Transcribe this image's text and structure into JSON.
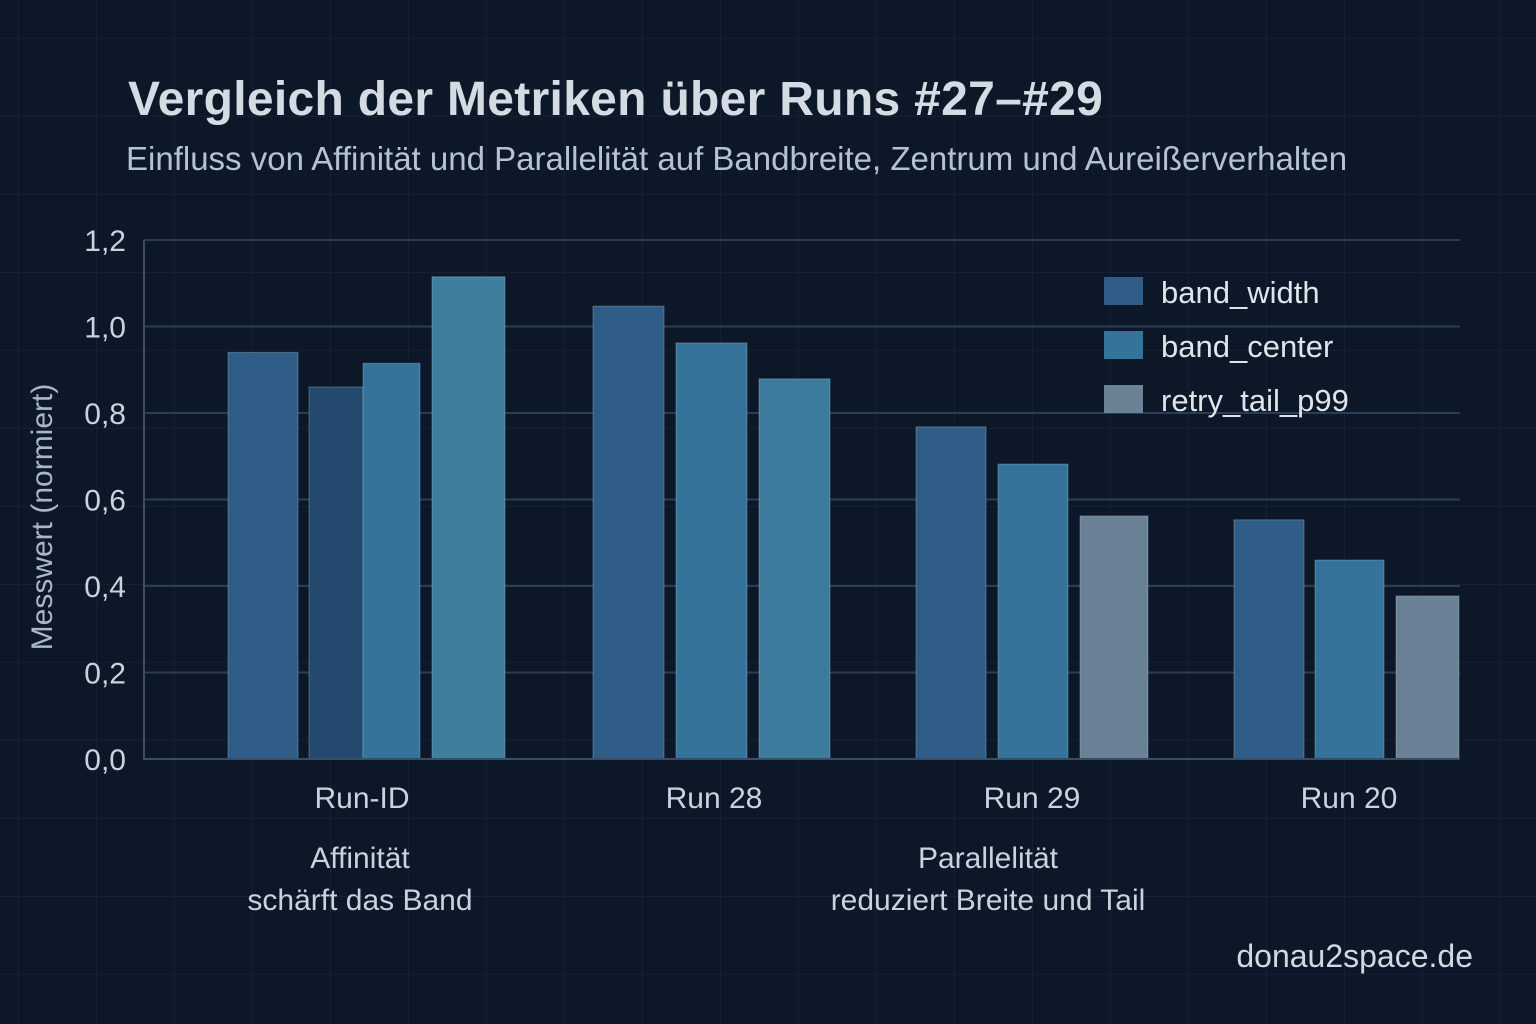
{
  "header": {
    "title": "Vergleich der Metriken über Runs #27–#29",
    "subtitle": "Einfluss von Affinität und Parallelität auf Bandbreite, Zentrum und Aureißerverhalten"
  },
  "watermark": "donau2space.de",
  "chart_data": {
    "type": "bar",
    "title": "Vergleich der Metriken über Runs #27–#29",
    "subtitle": "Einfluss von Affinität und Parallelität auf Bandbreite, Zentrum und Aureißerverhalten",
    "xlabel": "",
    "ylabel": "Messwert (normiert)",
    "ylim": [
      0,
      1.2
    ],
    "yticks": [
      0.0,
      0.2,
      0.4,
      0.6,
      0.8,
      1.0,
      1.2
    ],
    "ytick_labels": [
      "0,0",
      "0,2",
      "0,4",
      "0,6",
      "0,8",
      "1,0",
      "1,2"
    ],
    "grid": true,
    "legend_position": "top-right",
    "categories": [
      "Run-ID",
      "Run 28",
      "Run 29",
      "Run 20"
    ],
    "series": [
      {
        "name": "band_width",
        "color": "#2f5d87"
      },
      {
        "name": "band_center",
        "color": "#35739a"
      },
      {
        "name": "retry_tail_p99",
        "color": "#6b8296"
      }
    ],
    "groups": [
      {
        "category": "Run-ID",
        "bars": [
          {
            "series": "band_width",
            "value": 0.94,
            "color": "#2f5d87"
          },
          {
            "series": "band_width",
            "value": 0.86,
            "color": "#234a6e"
          },
          {
            "series": "band_center",
            "value": 0.915,
            "color": "#35739a"
          },
          {
            "series": "band_center",
            "value": 1.115,
            "color": "#3e7f9e"
          }
        ]
      },
      {
        "category": "Run 28",
        "bars": [
          {
            "series": "band_width",
            "value": 1.047,
            "color": "#2f5d87"
          },
          {
            "series": "band_center",
            "value": 0.962,
            "color": "#35739a"
          },
          {
            "series": "band_center",
            "value": 0.879,
            "color": "#3b7c9d"
          }
        ]
      },
      {
        "category": "Run 29",
        "bars": [
          {
            "series": "band_width",
            "value": 0.768,
            "color": "#2f5d87"
          },
          {
            "series": "band_center",
            "value": 0.682,
            "color": "#35739a"
          },
          {
            "series": "retry_tail_p99",
            "value": 0.562,
            "color": "#6b8296"
          }
        ]
      },
      {
        "category": "Run 20",
        "bars": [
          {
            "series": "band_width",
            "value": 0.553,
            "color": "#2f5d87"
          },
          {
            "series": "band_center",
            "value": 0.46,
            "color": "#35739a"
          },
          {
            "series": "retry_tail_p99",
            "value": 0.377,
            "color": "#6b8296"
          }
        ]
      }
    ],
    "annotations": [
      {
        "lines": [
          "Affinität",
          "schärft das Band"
        ],
        "under": "Run-ID"
      },
      {
        "lines": [
          "Parallelität",
          "reduziert Breite und Tail"
        ],
        "under": "Run 29"
      }
    ]
  }
}
